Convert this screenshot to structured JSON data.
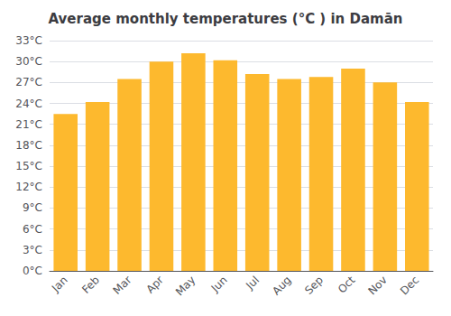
{
  "chart_data": {
    "type": "bar",
    "title": "Average monthly temperatures (°C ) in Damān",
    "categories": [
      "Jan",
      "Feb",
      "Mar",
      "Apr",
      "May",
      "Jun",
      "Jul",
      "Aug",
      "Sep",
      "Oct",
      "Nov",
      "Dec"
    ],
    "values": [
      22.5,
      24.2,
      27.5,
      30.0,
      31.2,
      30.2,
      28.2,
      27.5,
      27.8,
      29.0,
      27.0,
      24.2
    ],
    "color": "#FDB92E",
    "ylim": [
      0,
      33
    ],
    "yticks": [
      {
        "value": 0,
        "label": "0°C"
      },
      {
        "value": 3,
        "label": "3°C"
      },
      {
        "value": 6,
        "label": "6°C"
      },
      {
        "value": 9,
        "label": "9°C"
      },
      {
        "value": 12,
        "label": "12°C"
      },
      {
        "value": 15,
        "label": "15°C"
      },
      {
        "value": 18,
        "label": "18°C"
      },
      {
        "value": 21,
        "label": "21°C"
      },
      {
        "value": 24,
        "label": "24°C"
      },
      {
        "value": 27,
        "label": "27°C"
      },
      {
        "value": 30,
        "label": "30°C"
      },
      {
        "value": 33,
        "label": "33°C"
      }
    ],
    "grid": true
  }
}
